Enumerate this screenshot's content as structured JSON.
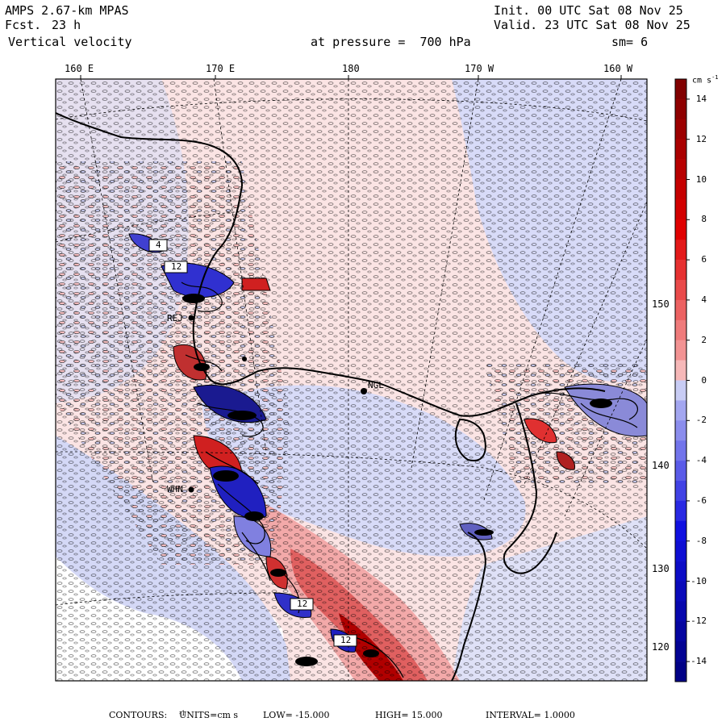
{
  "header": {
    "model": "AMPS 2.67-km MPAS",
    "fcst_label": "Fcst.",
    "fcst_value": "23 h",
    "field": "Vertical velocity",
    "level": "at pressure =  700 hPa",
    "init": "Init. 00 UTC Sat 08 Nov 25",
    "valid": "Valid. 23 UTC Sat 08 Nov 25",
    "smooth": "sm= 6"
  },
  "longitude_labels": [
    "160 E",
    "170 E",
    "180",
    "170 W",
    "160 W"
  ],
  "latitude_labels": [
    "150 W",
    "140 W",
    "130 W",
    "120 W"
  ],
  "colorbar": {
    "units": "cm s",
    "units_sup": "-1",
    "labels": [
      "14",
      "12",
      "10",
      "8",
      "6",
      "4",
      "2",
      "0",
      "-2",
      "-4",
      "-6",
      "-8",
      "-10",
      "-12",
      "-14"
    ],
    "colors": {
      "max": "#7a0000",
      "red": "#e00000",
      "light_red": "#f6b8b8",
      "neutral": "#ffffff",
      "light_blue": "#c8ccf4",
      "blue": "#1010e0",
      "min": "#000080"
    }
  },
  "stations": [
    {
      "id": "REJ"
    },
    {
      "id": "NGL"
    },
    {
      "id": "WHN"
    }
  ],
  "box_labels": [
    "4",
    "12",
    "12",
    "12"
  ],
  "footer": {
    "contours": "CONTOURS:",
    "units_label": "UNITS=cm s",
    "units_sup": "-1",
    "low": "LOW= -15.000",
    "high": "HIGH=  15.000",
    "interval": "INTERVAL=   1.0000"
  }
}
